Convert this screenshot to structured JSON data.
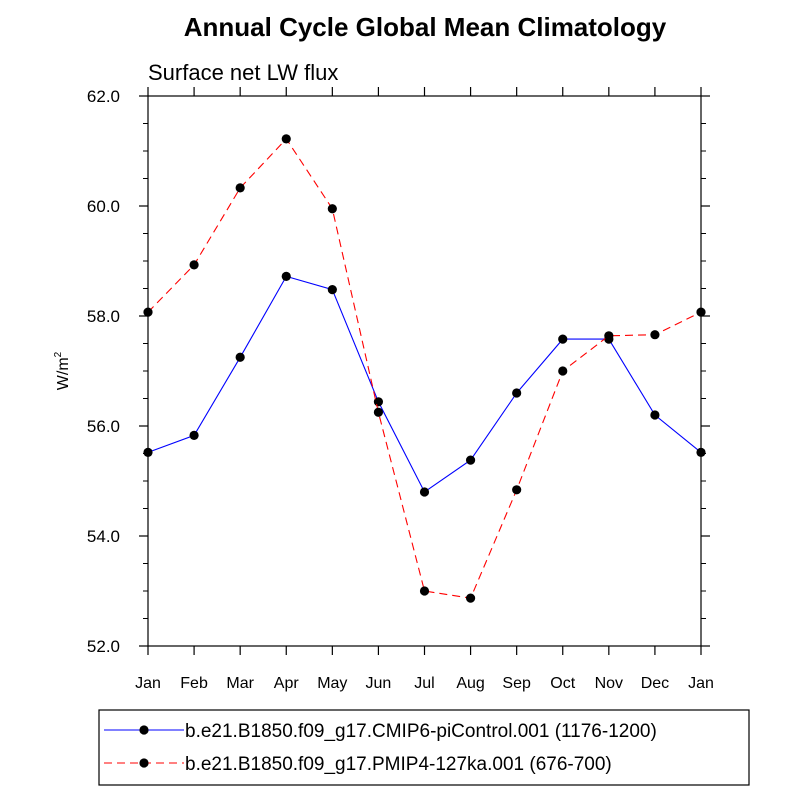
{
  "chart_data": {
    "type": "line",
    "title": "Annual Cycle Global Mean Climatology",
    "subtitle": "Surface net LW flux",
    "ylabel": "W/m",
    "ylabel_sup": "2",
    "xlabel": "",
    "categories": [
      "Jan",
      "Feb",
      "Mar",
      "Apr",
      "May",
      "Jun",
      "Jul",
      "Aug",
      "Sep",
      "Oct",
      "Nov",
      "Dec",
      "Jan"
    ],
    "ylim": [
      52.0,
      62.0
    ],
    "yticks": [
      "52.0",
      "54.0",
      "56.0",
      "58.0",
      "60.0",
      "62.0"
    ],
    "grid": false,
    "legend_position": "bottom",
    "series": [
      {
        "name": "b.e21.B1850.f09_g17.CMIP6-piControl.001 (1176-1200)",
        "color": "#0000ff",
        "dash": "solid",
        "values": [
          55.52,
          55.83,
          57.25,
          58.72,
          58.48,
          56.44,
          54.8,
          55.38,
          56.6,
          57.58,
          57.58,
          56.2,
          55.52
        ]
      },
      {
        "name": "b.e21.B1850.f09_g17.PMIP4-127ka.001 (676-700)",
        "color": "#ff0000",
        "dash": "dashed",
        "values": [
          58.07,
          58.93,
          60.33,
          61.22,
          59.95,
          56.25,
          53.0,
          52.87,
          54.84,
          57.0,
          57.64,
          57.66,
          58.07
        ]
      }
    ]
  }
}
